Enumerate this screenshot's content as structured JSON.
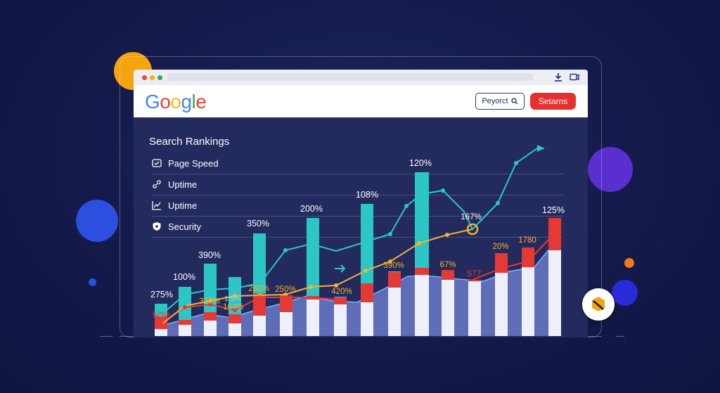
{
  "browser": {
    "logo_text": "Google",
    "search_input": "Peyorct",
    "search_button": "Setarns"
  },
  "panel": {
    "title": "Search Rankings",
    "items": [
      {
        "label": "Page Speed",
        "icon": "speed-check-icon"
      },
      {
        "label": "Uptime",
        "icon": "link-icon"
      },
      {
        "label": "Uptime",
        "icon": "line-chart-icon"
      },
      {
        "label": "Security",
        "icon": "shield-icon"
      }
    ]
  },
  "colors": {
    "background": "#141a4a",
    "teal": "#2cc7c4",
    "red": "#e53935",
    "yellow": "#f2b233",
    "area": "#6a79c8",
    "accent_red_button": "#e5302d"
  },
  "chart_data": {
    "type": "bar",
    "bar_labels": [
      "275%",
      "100%",
      "390%",
      "350%",
      "200%",
      "108%",
      "120%",
      "125%"
    ],
    "line_labels": [
      "5/3%",
      "327%",
      "164%",
      "260%",
      "250%",
      "420%",
      "390%",
      "67%",
      "S77",
      "167%",
      "20%",
      "1780"
    ],
    "extra_labels": [
      "1/5%"
    ],
    "highlight_label": "167%"
  }
}
